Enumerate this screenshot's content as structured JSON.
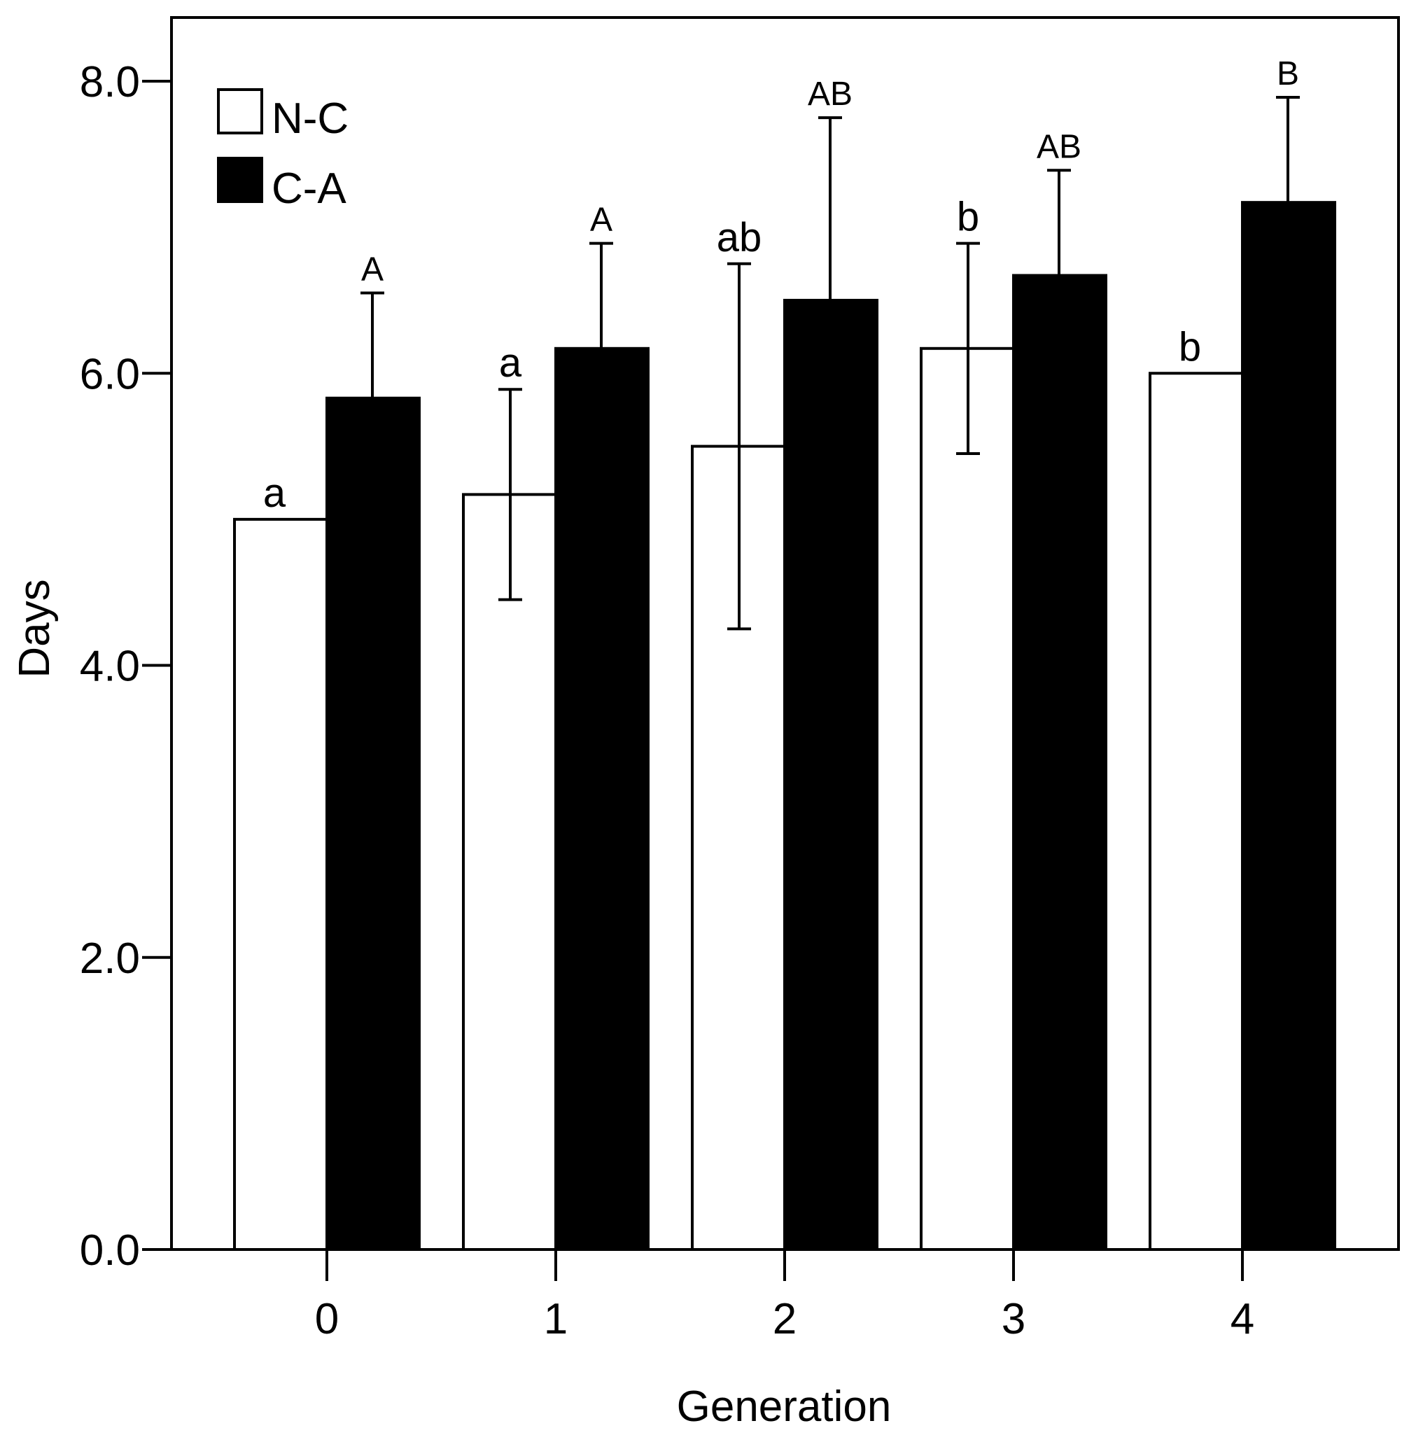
{
  "chart_data": {
    "type": "bar",
    "title": "",
    "xlabel": "Generation",
    "ylabel": "Days",
    "ylim": [
      0,
      8.5
    ],
    "yticks": [
      0,
      2,
      4,
      6,
      8
    ],
    "ytick_labels": [
      "0.0",
      "2.0",
      "4.0",
      "6.0",
      "8.0"
    ],
    "categories": [
      "0",
      "1",
      "2",
      "3",
      "4"
    ],
    "legend_position": "top-left",
    "series": [
      {
        "name": "N-C",
        "fill": "#ffffff",
        "values": [
          5.0,
          5.17,
          5.5,
          6.17,
          6.0
        ],
        "errors": [
          0,
          0.72,
          1.25,
          0.72,
          0
        ],
        "letters": [
          "a",
          "a",
          "ab",
          "b",
          "b"
        ]
      },
      {
        "name": "C-A",
        "fill": "#000000",
        "values": [
          5.83,
          6.17,
          6.5,
          6.67,
          7.17
        ],
        "errors": [
          0.72,
          0.72,
          1.25,
          0.72,
          0.72
        ],
        "letters": [
          "A",
          "A",
          "AB",
          "AB",
          "B"
        ]
      }
    ]
  }
}
